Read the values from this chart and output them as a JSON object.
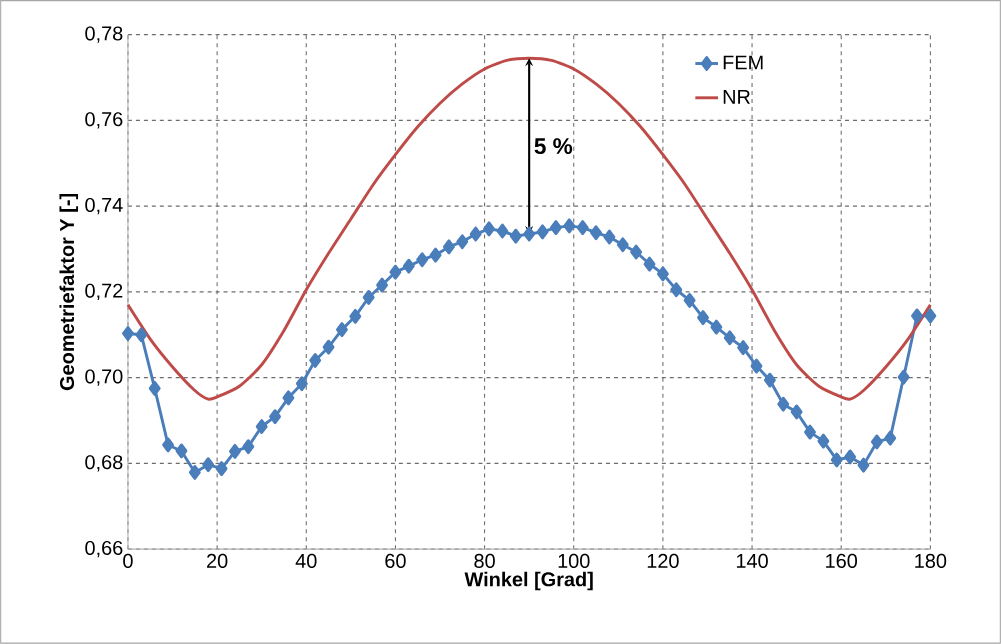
{
  "chart_data": {
    "type": "line",
    "xlabel": "Winkel [Grad]",
    "ylabel": "Geometriefaktor Y [-]",
    "xlim": [
      0,
      180
    ],
    "xticks": [
      0,
      20,
      40,
      60,
      80,
      100,
      120,
      140,
      160,
      180
    ],
    "ylim": [
      0.66,
      0.78
    ],
    "yticks": [
      {
        "value": 0.66,
        "label": "0,66"
      },
      {
        "value": 0.68,
        "label": "0,68"
      },
      {
        "value": 0.7,
        "label": "0,70"
      },
      {
        "value": 0.72,
        "label": "0,72"
      },
      {
        "value": 0.74,
        "label": "0,74"
      },
      {
        "value": 0.76,
        "label": "0,76"
      },
      {
        "value": 0.78,
        "label": "0,78"
      }
    ],
    "grid": true,
    "legend": "top right",
    "annotations": [
      "5 %"
    ],
    "series": [
      {
        "name": "FEM",
        "color": "#4a7ebb",
        "marker": "diamond",
        "x": [
          0,
          3,
          6,
          9,
          12,
          15,
          18,
          21,
          24,
          27,
          30,
          33,
          36,
          39,
          42,
          45,
          48,
          51,
          54,
          57,
          60,
          63,
          66,
          69,
          72,
          75,
          78,
          81,
          84,
          87,
          90,
          93,
          96,
          99,
          102,
          105,
          108,
          111,
          114,
          117,
          120,
          123,
          126,
          129,
          132,
          135,
          138,
          141,
          144,
          147,
          150,
          153,
          156,
          159,
          162,
          165,
          168,
          171,
          174,
          177,
          180
        ],
        "values": [
          0.7103,
          0.71,
          0.6975,
          0.6843,
          0.6829,
          0.6779,
          0.6797,
          0.6788,
          0.6828,
          0.6839,
          0.6886,
          0.6909,
          0.6953,
          0.6986,
          0.704,
          0.7071,
          0.7112,
          0.7143,
          0.7187,
          0.7216,
          0.7246,
          0.726,
          0.7275,
          0.7286,
          0.7305,
          0.7317,
          0.7335,
          0.7347,
          0.7342,
          0.733,
          0.7335,
          0.734,
          0.735,
          0.7354,
          0.735,
          0.7338,
          0.7328,
          0.731,
          0.7293,
          0.7265,
          0.7242,
          0.7205,
          0.718,
          0.714,
          0.7118,
          0.7093,
          0.707,
          0.7027,
          0.6994,
          0.6938,
          0.692,
          0.6873,
          0.6852,
          0.6808,
          0.6815,
          0.6796,
          0.685,
          0.6859,
          0.7001,
          0.7144,
          0.7144
        ]
      },
      {
        "name": "NR",
        "color": "#be4b48",
        "marker": "none",
        "x": [
          0,
          5,
          10,
          15,
          18,
          20,
          25,
          30,
          35,
          40,
          45,
          50,
          55,
          60,
          65,
          70,
          75,
          80,
          85,
          90,
          95,
          100,
          105,
          110,
          115,
          120,
          125,
          130,
          135,
          140,
          145,
          150,
          155,
          160,
          162,
          165,
          170,
          175,
          180
        ],
        "values": [
          0.717,
          0.709,
          0.7025,
          0.697,
          0.695,
          0.6955,
          0.698,
          0.703,
          0.711,
          0.7205,
          0.729,
          0.737,
          0.745,
          0.752,
          0.7585,
          0.764,
          0.7685,
          0.772,
          0.774,
          0.7745,
          0.774,
          0.772,
          0.7685,
          0.764,
          0.7585,
          0.752,
          0.745,
          0.737,
          0.729,
          0.7205,
          0.711,
          0.703,
          0.698,
          0.6955,
          0.695,
          0.697,
          0.7025,
          0.709,
          0.717
        ]
      }
    ]
  }
}
